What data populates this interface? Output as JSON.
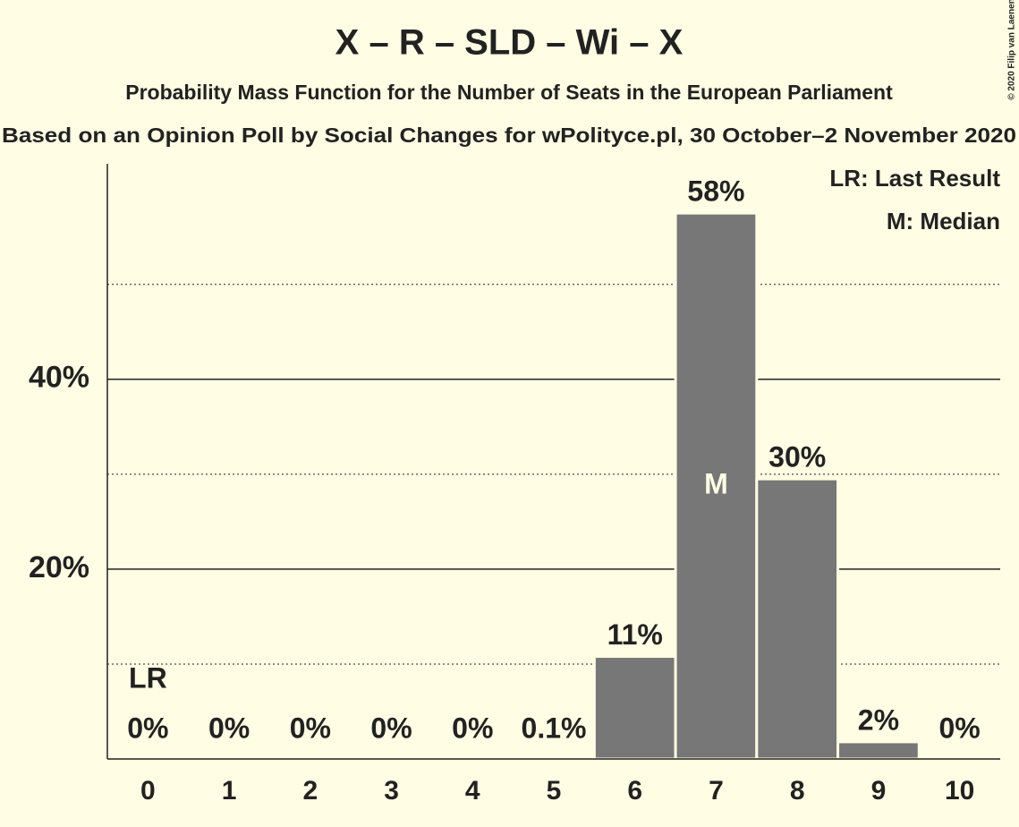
{
  "chart_data": {
    "type": "bar",
    "title": "X – R – SLD – Wi – X",
    "subtitle": "Probability Mass Function for the Number of Seats in the European Parliament",
    "caption": "Based on an Opinion Poll by Social Changes for wPolityce.pl, 30 October–2 November 2020",
    "copyright": "© 2020 Filip van Laenen",
    "categories": [
      "0",
      "1",
      "2",
      "3",
      "4",
      "5",
      "6",
      "7",
      "8",
      "9",
      "10"
    ],
    "values": [
      0,
      0,
      0,
      0,
      0,
      0.1,
      10.8,
      57.5,
      29.5,
      1.8,
      0
    ],
    "value_labels": [
      "0%",
      "0%",
      "0%",
      "0%",
      "0%",
      "0.1%",
      "11%",
      "58%",
      "30%",
      "2%",
      "0%"
    ],
    "color": "#777777",
    "ylim": [
      0,
      62.7
    ],
    "yticks": [
      {
        "value": 20,
        "label": "20%"
      },
      {
        "value": 40,
        "label": "40%"
      }
    ],
    "minor_grid": [
      10,
      30,
      50
    ],
    "grid": true,
    "markers": [
      {
        "label": "LR",
        "category": "0"
      },
      {
        "label": "M",
        "category": "7"
      }
    ],
    "legend": [
      "LR: Last Result",
      "M: Median"
    ],
    "legend_position": "top-right"
  }
}
